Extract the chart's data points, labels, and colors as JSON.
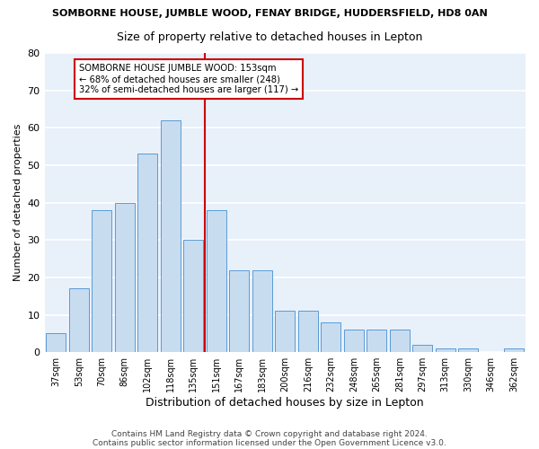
{
  "title": "SOMBORNE HOUSE, JUMBLE WOOD, FENAY BRIDGE, HUDDERSFIELD, HD8 0AN",
  "subtitle": "Size of property relative to detached houses in Lepton",
  "xlabel": "Distribution of detached houses by size in Lepton",
  "ylabel": "Number of detached properties",
  "categories": [
    "37sqm",
    "53sqm",
    "70sqm",
    "86sqm",
    "102sqm",
    "118sqm",
    "135sqm",
    "151sqm",
    "167sqm",
    "183sqm",
    "200sqm",
    "216sqm",
    "232sqm",
    "248sqm",
    "265sqm",
    "281sqm",
    "297sqm",
    "313sqm",
    "330sqm",
    "346sqm",
    "362sqm"
  ],
  "values": [
    5,
    17,
    38,
    40,
    53,
    62,
    30,
    38,
    22,
    22,
    11,
    11,
    8,
    6,
    6,
    6,
    2,
    1,
    1,
    0,
    1
  ],
  "bar_color": "#c8dcf0",
  "bar_edge_color": "#5b9bd5",
  "highlight_index": 7,
  "highlight_color": "#cc0000",
  "annotation_text": "SOMBORNE HOUSE JUMBLE WOOD: 153sqm\n← 68% of detached houses are smaller (248)\n32% of semi-detached houses are larger (117) →",
  "annotation_box_color": "white",
  "annotation_box_edge": "#cc0000",
  "ylim": [
    0,
    80
  ],
  "yticks": [
    0,
    10,
    20,
    30,
    40,
    50,
    60,
    70,
    80
  ],
  "background_color": "#e8f0fa",
  "grid_color": "white",
  "footer1": "Contains HM Land Registry data © Crown copyright and database right 2024.",
  "footer2": "Contains public sector information licensed under the Open Government Licence v3.0."
}
